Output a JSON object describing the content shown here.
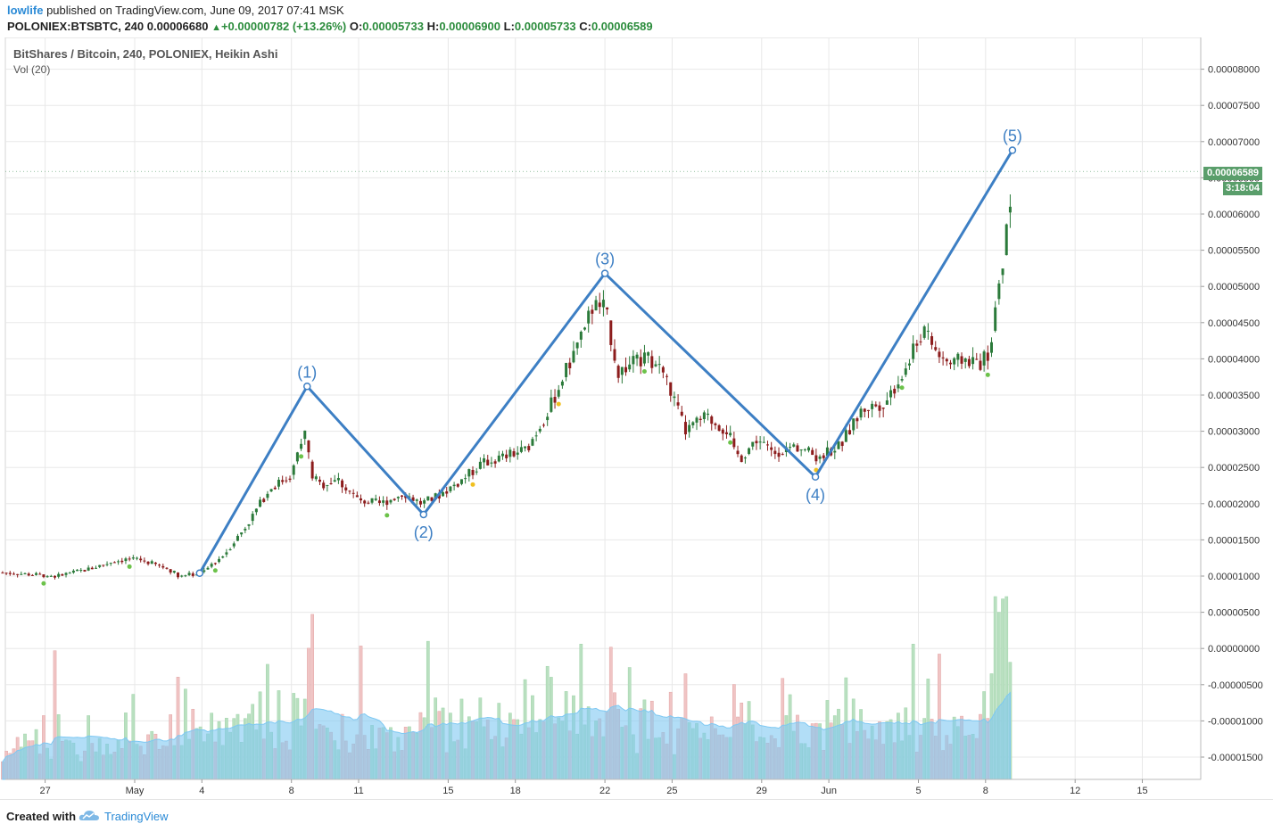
{
  "header": {
    "user": "lowlife",
    "published": "published on TradingView.com, June 09, 2017 07:41 MSK",
    "symbol": "POLONIEX:BTSBTC, 240",
    "last": "0.00006680",
    "change": "+0.00000782 (+13.26%)",
    "o_label": "O:",
    "o_value": "0.00005733",
    "h_label": "H:",
    "h_value": "0.00006900",
    "l_label": "L:",
    "l_value": "0.00005733",
    "c_label": "C:",
    "c_value": "0.00006589"
  },
  "legend": {
    "series_title": "BitShares / Bitcoin, 240, POLONIEX, Heikin Ashi",
    "volume_title": "Vol (20)"
  },
  "tags": {
    "last_price": "0.00006589",
    "countdown": "3:18:04"
  },
  "footer": {
    "created_with": "Created with",
    "brand": "TradingView"
  },
  "colors": {
    "up": "#2b7a3a",
    "down": "#8c1c1c",
    "wave": "#3d7fc4",
    "vol_up": "#b9e0c0",
    "vol_down": "#f0c4c4",
    "vol_ma": "#7ec8f2",
    "grid": "#e8e8e8",
    "brand": "#2a8ad6"
  },
  "chart_data": {
    "type": "candlestick",
    "ylim": [
      -1.8e-05,
      8.4e-05
    ],
    "y_ticks": [
      "0.00008000",
      "0.00007500",
      "0.00007000",
      "0.00006500",
      "0.00006000",
      "0.00005500",
      "0.00005000",
      "0.00004500",
      "0.00004000",
      "0.00003500",
      "0.00003000",
      "0.00002500",
      "0.00002000",
      "0.00001500",
      "0.00001000",
      "0.00000500",
      "0.00000000",
      "-0.00000500",
      "-0.00001000",
      "-0.00001500"
    ],
    "y_tick_values": [
      8e-05,
      7.5e-05,
      7e-05,
      6.5e-05,
      6e-05,
      5.5e-05,
      5e-05,
      4.5e-05,
      4e-05,
      3.5e-05,
      3e-05,
      2.5e-05,
      2e-05,
      1.5e-05,
      1e-05,
      5e-06,
      0,
      -5e-06,
      -1e-05,
      -1.5e-05
    ],
    "x_ticks": [
      {
        "label": "27",
        "day": -4
      },
      {
        "label": "May",
        "day": 0
      },
      {
        "label": "4",
        "day": 3
      },
      {
        "label": "8",
        "day": 7
      },
      {
        "label": "11",
        "day": 10
      },
      {
        "label": "15",
        "day": 14
      },
      {
        "label": "18",
        "day": 17
      },
      {
        "label": "22",
        "day": 21
      },
      {
        "label": "25",
        "day": 24
      },
      {
        "label": "29",
        "day": 28
      },
      {
        "label": "Jun",
        "day": 31
      },
      {
        "label": "5",
        "day": 35
      },
      {
        "label": "8",
        "day": 38
      },
      {
        "label": "12",
        "day": 42
      },
      {
        "label": "15",
        "day": 45
      }
    ],
    "price_path": [
      [
        -6,
        1.05e-05
      ],
      [
        -3.5,
        1e-05
      ],
      [
        -2,
        1.1e-05
      ],
      [
        -1,
        1.2e-05
      ],
      [
        0,
        1.25e-05
      ],
      [
        0.5,
        1.2e-05
      ],
      [
        1.5,
        1.1e-05
      ],
      [
        2,
        1e-05
      ],
      [
        3,
        1.04e-05
      ],
      [
        4,
        1.3e-05
      ],
      [
        5,
        1.7e-05
      ],
      [
        6,
        2.2e-05
      ],
      [
        7,
        2.4e-05
      ],
      [
        7.6,
        3e-05
      ],
      [
        7.9,
        2.4e-05
      ],
      [
        8.3,
        2.25e-05
      ],
      [
        9,
        2.35e-05
      ],
      [
        10,
        2.05e-05
      ],
      [
        11,
        2e-05
      ],
      [
        12,
        2.15e-05
      ],
      [
        12.8,
        2e-05
      ],
      [
        13.5,
        2.1e-05
      ],
      [
        14.5,
        2.3e-05
      ],
      [
        15.5,
        2.55e-05
      ],
      [
        16.5,
        2.65e-05
      ],
      [
        17.5,
        2.75e-05
      ],
      [
        18.5,
        3.3e-05
      ],
      [
        19.5,
        4e-05
      ],
      [
        20.5,
        4.75e-05
      ],
      [
        21,
        4.7e-05
      ],
      [
        21.6,
        3.8e-05
      ],
      [
        22,
        3.9e-05
      ],
      [
        22.8,
        4e-05
      ],
      [
        23.5,
        3.9e-05
      ],
      [
        24,
        3.5e-05
      ],
      [
        24.6,
        3e-05
      ],
      [
        25.5,
        3.2e-05
      ],
      [
        26.5,
        3e-05
      ],
      [
        27,
        2.6e-05
      ],
      [
        27.8,
        2.9e-05
      ],
      [
        28.5,
        2.7e-05
      ],
      [
        29.5,
        2.8e-05
      ],
      [
        30.5,
        2.65e-05
      ],
      [
        31.5,
        2.8e-05
      ],
      [
        32.5,
        3.3e-05
      ],
      [
        33.5,
        3.4e-05
      ],
      [
        34.5,
        3.9e-05
      ],
      [
        35.2,
        4.4e-05
      ],
      [
        35.8,
        4.1e-05
      ],
      [
        36.5,
        3.9e-05
      ],
      [
        37,
        4e-05
      ],
      [
        37.8,
        3.95e-05
      ],
      [
        38.2,
        4.1e-05
      ],
      [
        38.6,
        5e-05
      ],
      [
        38.9,
        5.6e-05
      ],
      [
        39.2,
        6.6e-05
      ]
    ],
    "wave_points": [
      {
        "label": "(1)",
        "day": 7.7,
        "value": 3.62e-05
      },
      {
        "label": "(2)",
        "day": 12.9,
        "value": 1.85e-05
      },
      {
        "label": "(3)",
        "day": 21.0,
        "value": 5.18e-05
      },
      {
        "label": "(4)",
        "day": 30.4,
        "value": 2.37e-05
      },
      {
        "label": "(5)",
        "day": 39.2,
        "value": 6.88e-05
      }
    ],
    "wave_start": {
      "day": 2.9,
      "value": 1.04e-05
    },
    "last_price": 6.589e-05
  }
}
